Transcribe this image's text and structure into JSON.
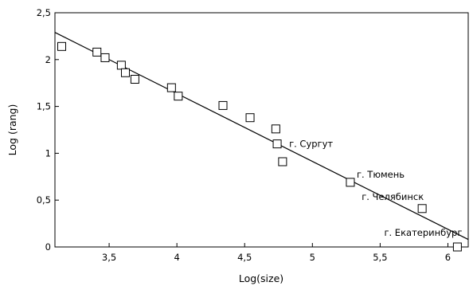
{
  "chart_data": {
    "type": "scatter",
    "xlabel": "Log(size)",
    "ylabel": "Log (rang)",
    "xlim": [
      3.1,
      6.15
    ],
    "ylim": [
      0,
      2.5
    ],
    "x_ticks": [
      {
        "value": 3.5,
        "label": "3,5"
      },
      {
        "value": 4,
        "label": "4"
      },
      {
        "value": 4.5,
        "label": "4,5"
      },
      {
        "value": 5,
        "label": "5"
      },
      {
        "value": 5.5,
        "label": "5,5"
      },
      {
        "value": 6,
        "label": "6"
      }
    ],
    "y_ticks": [
      {
        "value": 0,
        "label": "0"
      },
      {
        "value": 0.5,
        "label": "0,5"
      },
      {
        "value": 1,
        "label": "1"
      },
      {
        "value": 1.5,
        "label": "1,5"
      },
      {
        "value": 2,
        "label": "2"
      },
      {
        "value": 2.5,
        "label": "2,5"
      }
    ],
    "points": [
      {
        "x": 3.15,
        "y": 2.14
      },
      {
        "x": 3.41,
        "y": 2.08
      },
      {
        "x": 3.47,
        "y": 2.02
      },
      {
        "x": 3.59,
        "y": 1.94
      },
      {
        "x": 3.62,
        "y": 1.86
      },
      {
        "x": 3.69,
        "y": 1.79
      },
      {
        "x": 3.96,
        "y": 1.7
      },
      {
        "x": 4.01,
        "y": 1.61
      },
      {
        "x": 4.34,
        "y": 1.51
      },
      {
        "x": 4.54,
        "y": 1.38
      },
      {
        "x": 4.73,
        "y": 1.26
      },
      {
        "x": 4.74,
        "y": 1.1
      },
      {
        "x": 4.78,
        "y": 0.91
      },
      {
        "x": 5.28,
        "y": 0.69
      },
      {
        "x": 5.81,
        "y": 0.41
      },
      {
        "x": 6.07,
        "y": 0.0
      }
    ],
    "trendline": {
      "x": [
        3.1,
        6.15
      ],
      "y": [
        2.29,
        0.08
      ]
    },
    "annotations": [
      {
        "text": "г. Сургут",
        "x": 4.74,
        "y": 1.1
      },
      {
        "text": "г. Тюмень",
        "x": 5.28,
        "y": 0.69
      },
      {
        "text": "г. Челябинск",
        "x": 5.81,
        "y": 0.41
      },
      {
        "text": "г. Екатеринбург",
        "x": 6.07,
        "y": 0.0
      }
    ],
    "grid": false,
    "legend": false
  }
}
